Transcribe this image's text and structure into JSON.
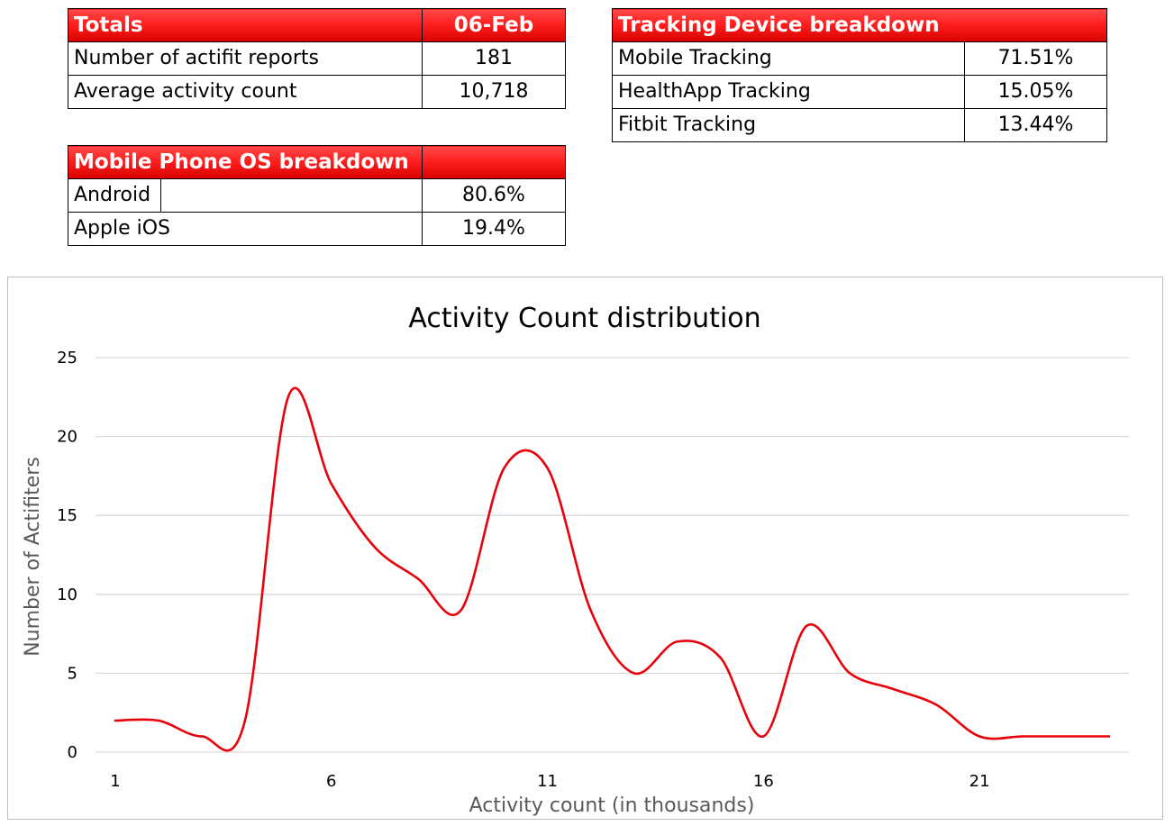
{
  "totals": {
    "header": "Totals",
    "date": "06-Feb",
    "rows": [
      {
        "label": "Number of actifit reports",
        "value": "181"
      },
      {
        "label": "Average activity count",
        "value": "10,718"
      }
    ]
  },
  "os_breakdown": {
    "header": "Mobile Phone OS breakdown",
    "rows": [
      {
        "label": "Android",
        "value": "80.6%"
      },
      {
        "label": "Apple iOS",
        "value": "19.4%"
      }
    ]
  },
  "device_breakdown": {
    "header": "Tracking Device breakdown",
    "rows": [
      {
        "label": "Mobile Tracking",
        "value": "71.51%"
      },
      {
        "label": "HealthApp Tracking",
        "value": "15.05%"
      },
      {
        "label": "Fitbit Tracking",
        "value": "13.44%"
      }
    ]
  },
  "colors": {
    "header_red": "#ff1f1f",
    "line": "#e8000b",
    "grid": "#d9d9d9"
  },
  "chart_data": {
    "type": "line",
    "title": "Activity Count distribution",
    "xlabel": "Activity count (in thousands)",
    "ylabel": "Number of Actifiters",
    "x": [
      1,
      2,
      3,
      4,
      5,
      6,
      7,
      8,
      9,
      10,
      11,
      12,
      13,
      14,
      15,
      16,
      17,
      18,
      19,
      20,
      21,
      22,
      23,
      24
    ],
    "series": [
      {
        "values": [
          2,
          2,
          1,
          2,
          22.5,
          17,
          13,
          11,
          9,
          18,
          18,
          9,
          5,
          7,
          6,
          1,
          8,
          5,
          4,
          3,
          1,
          1,
          1,
          1
        ]
      }
    ],
    "xticks": [
      1,
      6,
      11,
      16,
      21
    ],
    "yticks": [
      0,
      5,
      10,
      15,
      20,
      25
    ],
    "ylim": [
      0,
      25
    ],
    "grid": true,
    "legend": "none",
    "smooth": true
  }
}
